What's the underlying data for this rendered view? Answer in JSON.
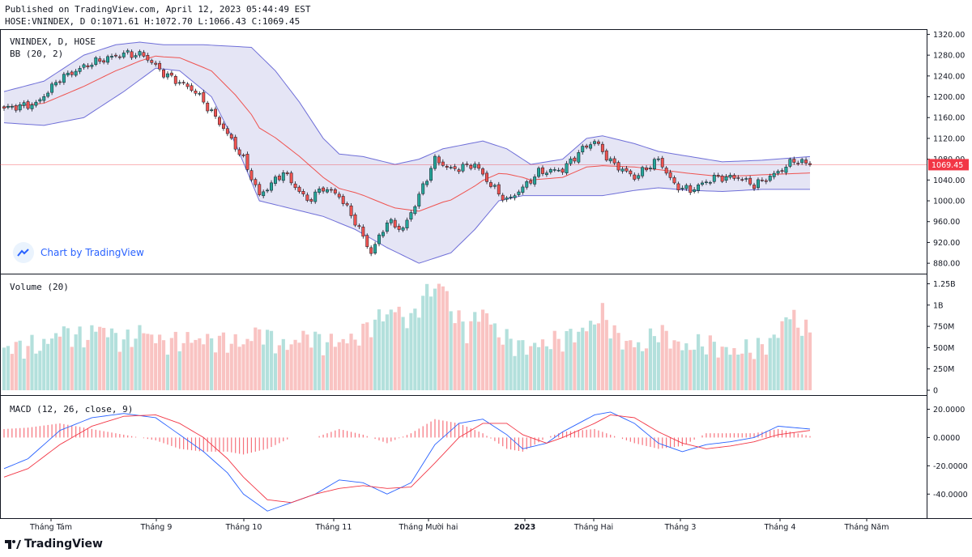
{
  "header": {
    "published": "Published on TradingView.com, April 12, 2023 05:44:49 EST",
    "ohlc": "HOSE:VNINDEX, D O:1071.61 H:1072.70 L:1066.43 C:1069.45"
  },
  "panes": {
    "price_title": "VNINDEX, D, HOSE",
    "bb_title": "BB (20, 2)",
    "volume_title": "Volume (20)",
    "macd_title": "MACD (12, 26, close, 9)"
  },
  "watermark": {
    "label": "Chart by TradingView"
  },
  "brand": {
    "name": "TradingView"
  },
  "colors": {
    "up": "#26a69a",
    "down": "#ef5350",
    "bb_fill": "#dcdcf2",
    "bb_band": "#6f6fd8",
    "basis": "#ef5350",
    "macd": "#2962ff",
    "signal": "#f23645",
    "last": "#f23645"
  },
  "chart_data": [
    {
      "type": "candlestick",
      "title": "VNINDEX, D, HOSE",
      "indicator": "BB (20, 2)",
      "x_tick_labels": [
        "Tháng Tám",
        "Tháng 9",
        "Tháng 10",
        "Tháng 11",
        "Tháng Mười hai",
        "2023",
        "Tháng Hai",
        "Tháng 3",
        "Tháng 4",
        "Tháng Năm"
      ],
      "y_tick_labels": [
        "1320.00",
        "1280.00",
        "1240.00",
        "1200.00",
        "1160.00",
        "1120.00",
        "1080.00",
        "1040.00",
        "1000.00",
        "960.00",
        "920.00",
        "880.00"
      ],
      "ylim": [
        860,
        1330
      ],
      "last_value": 1069.45,
      "last_label": "1069.45",
      "close_keypoints": [
        [
          0,
          1178
        ],
        [
          8,
          1186
        ],
        [
          14,
          1235
        ],
        [
          22,
          1265
        ],
        [
          30,
          1283
        ],
        [
          35,
          1280
        ],
        [
          40,
          1245
        ],
        [
          48,
          1210
        ],
        [
          55,
          1140
        ],
        [
          60,
          1080
        ],
        [
          64,
          1010
        ],
        [
          70,
          1055
        ],
        [
          76,
          1000
        ],
        [
          80,
          1025
        ],
        [
          84,
          1010
        ],
        [
          88,
          960
        ],
        [
          92,
          900
        ],
        [
          96,
          960
        ],
        [
          100,
          945
        ],
        [
          104,
          1010
        ],
        [
          108,
          1080
        ],
        [
          112,
          1060
        ],
        [
          118,
          1070
        ],
        [
          122,
          1030
        ],
        [
          126,
          1000
        ],
        [
          130,
          1025
        ],
        [
          134,
          1055
        ],
        [
          140,
          1060
        ],
        [
          145,
          1100
        ],
        [
          148,
          1115
        ],
        [
          152,
          1075
        ],
        [
          158,
          1045
        ],
        [
          164,
          1080
        ],
        [
          168,
          1030
        ],
        [
          172,
          1020
        ],
        [
          178,
          1045
        ],
        [
          184,
          1045
        ],
        [
          188,
          1030
        ],
        [
          194,
          1055
        ],
        [
          198,
          1078
        ],
        [
          202,
          1070
        ]
      ],
      "bb_upper_keypoints": [
        [
          0,
          1210
        ],
        [
          10,
          1230
        ],
        [
          20,
          1280
        ],
        [
          28,
          1300
        ],
        [
          34,
          1305
        ],
        [
          40,
          1300
        ],
        [
          50,
          1300
        ],
        [
          62,
          1295
        ],
        [
          68,
          1250
        ],
        [
          74,
          1190
        ],
        [
          80,
          1120
        ],
        [
          84,
          1090
        ],
        [
          90,
          1085
        ],
        [
          98,
          1070
        ],
        [
          104,
          1080
        ],
        [
          110,
          1100
        ],
        [
          120,
          1115
        ],
        [
          126,
          1100
        ],
        [
          132,
          1070
        ],
        [
          140,
          1080
        ],
        [
          146,
          1120
        ],
        [
          150,
          1125
        ],
        [
          158,
          1110
        ],
        [
          164,
          1095
        ],
        [
          172,
          1085
        ],
        [
          180,
          1075
        ],
        [
          190,
          1078
        ],
        [
          202,
          1085
        ]
      ],
      "bb_lower_keypoints": [
        [
          0,
          1150
        ],
        [
          10,
          1145
        ],
        [
          20,
          1160
        ],
        [
          30,
          1210
        ],
        [
          38,
          1255
        ],
        [
          44,
          1250
        ],
        [
          52,
          1200
        ],
        [
          58,
          1110
        ],
        [
          64,
          1000
        ],
        [
          72,
          985
        ],
        [
          80,
          970
        ],
        [
          88,
          945
        ],
        [
          96,
          910
        ],
        [
          104,
          880
        ],
        [
          112,
          900
        ],
        [
          118,
          945
        ],
        [
          124,
          1000
        ],
        [
          130,
          1010
        ],
        [
          140,
          1010
        ],
        [
          150,
          1010
        ],
        [
          158,
          1020
        ],
        [
          164,
          1025
        ],
        [
          172,
          1020
        ],
        [
          180,
          1018
        ],
        [
          190,
          1022
        ],
        [
          202,
          1022
        ]
      ]
    },
    {
      "type": "bar",
      "title": "Volume (20)",
      "y_tick_labels": [
        "1.25B",
        "1B",
        "750M",
        "500M",
        "250M",
        "0"
      ],
      "ylim": [
        0,
        1350000000
      ],
      "volume_keypoints": [
        [
          0,
          500
        ],
        [
          10,
          520
        ],
        [
          14,
          700
        ],
        [
          20,
          600
        ],
        [
          24,
          750
        ],
        [
          30,
          560
        ],
        [
          35,
          700
        ],
        [
          40,
          550
        ],
        [
          48,
          600
        ],
        [
          60,
          550
        ],
        [
          64,
          700
        ],
        [
          70,
          500
        ],
        [
          76,
          650
        ],
        [
          80,
          550
        ],
        [
          88,
          600
        ],
        [
          94,
          850
        ],
        [
          98,
          950
        ],
        [
          102,
          800
        ],
        [
          104,
          1000
        ],
        [
          106,
          1150
        ],
        [
          110,
          1250
        ],
        [
          112,
          950
        ],
        [
          116,
          700
        ],
        [
          120,
          950
        ],
        [
          124,
          650
        ],
        [
          130,
          500
        ],
        [
          136,
          550
        ],
        [
          140,
          600
        ],
        [
          146,
          720
        ],
        [
          150,
          900
        ],
        [
          154,
          600
        ],
        [
          160,
          500
        ],
        [
          164,
          700
        ],
        [
          170,
          500
        ],
        [
          176,
          550
        ],
        [
          182,
          450
        ],
        [
          190,
          500
        ],
        [
          194,
          650
        ],
        [
          196,
          900
        ],
        [
          200,
          750
        ],
        [
          202,
          650
        ]
      ]
    },
    {
      "type": "line",
      "title": "MACD (12, 26, close, 9)",
      "y_tick_labels": [
        "20.0000",
        "0.0000",
        "-20.0000",
        "-40.0000"
      ],
      "ylim": [
        -53,
        26
      ],
      "macd_keypoints": [
        [
          0,
          -22
        ],
        [
          6,
          -15
        ],
        [
          14,
          5
        ],
        [
          22,
          14
        ],
        [
          30,
          17
        ],
        [
          38,
          14
        ],
        [
          44,
          2
        ],
        [
          50,
          -10
        ],
        [
          56,
          -25
        ],
        [
          60,
          -40
        ],
        [
          66,
          -52
        ],
        [
          72,
          -46
        ],
        [
          78,
          -40
        ],
        [
          84,
          -30
        ],
        [
          90,
          -32
        ],
        [
          96,
          -40
        ],
        [
          102,
          -32
        ],
        [
          108,
          -5
        ],
        [
          114,
          10
        ],
        [
          120,
          13
        ],
        [
          126,
          2
        ],
        [
          130,
          -8
        ],
        [
          136,
          -4
        ],
        [
          140,
          4
        ],
        [
          148,
          16
        ],
        [
          152,
          18
        ],
        [
          158,
          10
        ],
        [
          164,
          -4
        ],
        [
          170,
          -10
        ],
        [
          176,
          -5
        ],
        [
          182,
          -3
        ],
        [
          188,
          0
        ],
        [
          194,
          8
        ],
        [
          202,
          6
        ]
      ],
      "signal_keypoints": [
        [
          0,
          -28
        ],
        [
          6,
          -22
        ],
        [
          14,
          -5
        ],
        [
          22,
          8
        ],
        [
          30,
          15
        ],
        [
          38,
          16
        ],
        [
          44,
          10
        ],
        [
          50,
          0
        ],
        [
          56,
          -15
        ],
        [
          60,
          -28
        ],
        [
          66,
          -44
        ],
        [
          72,
          -46
        ],
        [
          78,
          -40
        ],
        [
          84,
          -36
        ],
        [
          90,
          -34
        ],
        [
          96,
          -36
        ],
        [
          102,
          -35
        ],
        [
          108,
          -18
        ],
        [
          114,
          0
        ],
        [
          120,
          10
        ],
        [
          126,
          10
        ],
        [
          130,
          2
        ],
        [
          136,
          -4
        ],
        [
          140,
          0
        ],
        [
          148,
          10
        ],
        [
          152,
          16
        ],
        [
          158,
          14
        ],
        [
          164,
          4
        ],
        [
          170,
          -4
        ],
        [
          176,
          -8
        ],
        [
          182,
          -6
        ],
        [
          188,
          -3
        ],
        [
          194,
          2
        ],
        [
          202,
          5
        ]
      ]
    }
  ]
}
